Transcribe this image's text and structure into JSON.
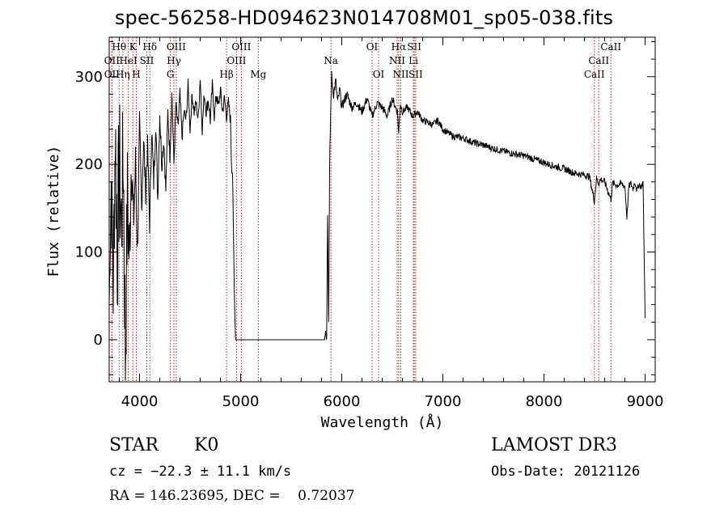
{
  "title": "spec-56258-HD094623N014708M01_sp05-038.fits",
  "info": {
    "object_class": "STAR",
    "subclass": "K0",
    "survey": "LAMOST DR3",
    "cz": "cz = −22.3 ± 11.1 km/s",
    "obs_date": "Obs-Date: 20121126",
    "radec": "RA = 146.23695, DEC =    0.72037"
  },
  "chart_data": {
    "type": "line",
    "xlabel": "Wavelength (Å)",
    "ylabel": "Flux (relative)",
    "xlim": [
      3700,
      9100
    ],
    "ylim": [
      -48,
      345
    ],
    "x_ticks": [
      4000,
      5000,
      6000,
      7000,
      8000,
      9000
    ],
    "y_ticks": [
      0,
      100,
      200,
      300
    ],
    "grid": false,
    "line_color": "#000000",
    "marker_color": "#b22222",
    "spectrum": {
      "x": [
        3700,
        3720,
        3740,
        3760,
        3780,
        3800,
        3820,
        3840,
        3860,
        3880,
        3900,
        3920,
        3940,
        3960,
        3980,
        4000,
        4020,
        4040,
        4060,
        4080,
        4100,
        4120,
        4140,
        4160,
        4180,
        4200,
        4220,
        4240,
        4260,
        4280,
        4300,
        4320,
        4340,
        4360,
        4380,
        4400,
        4420,
        4440,
        4460,
        4480,
        4500,
        4520,
        4540,
        4560,
        4580,
        4600,
        4620,
        4640,
        4660,
        4680,
        4700,
        4720,
        4740,
        4760,
        4780,
        4800,
        4820,
        4840,
        4860,
        4880,
        4900,
        4910,
        4920,
        4930,
        4940,
        4950,
        4960,
        5800,
        5810,
        5820,
        5830,
        5840,
        5850,
        5860,
        5870,
        5880,
        5890,
        5900,
        5920,
        5940,
        5960,
        5980,
        6000,
        6050,
        6100,
        6150,
        6200,
        6250,
        6300,
        6350,
        6400,
        6450,
        6500,
        6550,
        6563,
        6580,
        6600,
        6650,
        6700,
        6750,
        6800,
        6850,
        6900,
        6950,
        7000,
        7100,
        7200,
        7300,
        7400,
        7500,
        7600,
        7700,
        7800,
        7900,
        8000,
        8100,
        8200,
        8300,
        8400,
        8450,
        8498,
        8520,
        8542,
        8560,
        8600,
        8662,
        8680,
        8720,
        8760,
        8800,
        8820,
        8840,
        8860,
        8880,
        8900,
        8920,
        8940,
        8960,
        8980,
        9000
      ],
      "y": [
        40,
        180,
        60,
        240,
        100,
        200,
        130,
        210,
        -20,
        160,
        90,
        220,
        130,
        200,
        100,
        240,
        150,
        230,
        170,
        220,
        130,
        240,
        180,
        250,
        160,
        260,
        200,
        230,
        170,
        260,
        210,
        280,
        200,
        270,
        240,
        280,
        230,
        260,
        250,
        290,
        240,
        280,
        260,
        270,
        250,
        300,
        240,
        280,
        260,
        275,
        250,
        290,
        255,
        280,
        265,
        285,
        260,
        275,
        255,
        270,
        250,
        200,
        190,
        110,
        40,
        0,
        0,
        0,
        0,
        0,
        0,
        10,
        0,
        150,
        20,
        190,
        260,
        300,
        280,
        295,
        270,
        285,
        265,
        280,
        265,
        270,
        260,
        275,
        255,
        270,
        265,
        255,
        275,
        260,
        235,
        270,
        260,
        265,
        255,
        260,
        250,
        248,
        245,
        250,
        240,
        232,
        230,
        225,
        222,
        218,
        215,
        212,
        210,
        206,
        202,
        198,
        195,
        190,
        188,
        186,
        158,
        184,
        178,
        183,
        180,
        160,
        179,
        176,
        178,
        175,
        140,
        175,
        178,
        172,
        180,
        170,
        178,
        174,
        180,
        25
      ],
      "noise": [
        4,
        60,
        70,
        80,
        90,
        90,
        90,
        80,
        90,
        70,
        60,
        50,
        40,
        30,
        25,
        22,
        20,
        18,
        16,
        14,
        12,
        14,
        16,
        14,
        12,
        14,
        12,
        12,
        10,
        10,
        10,
        10,
        10,
        9,
        9,
        9,
        9,
        8,
        8,
        8,
        8,
        8,
        8,
        8,
        8,
        8,
        8,
        8,
        8,
        8,
        8,
        8,
        8,
        8,
        8,
        8,
        8,
        8,
        8,
        8,
        8,
        8,
        8,
        6,
        2,
        0,
        0,
        0,
        0,
        0,
        0,
        0,
        0,
        10,
        10,
        10,
        10,
        8,
        7,
        7,
        7,
        6,
        6,
        6,
        5,
        5,
        5,
        5,
        5,
        5,
        5,
        5,
        5,
        5,
        5,
        5,
        4,
        4,
        4,
        4,
        4,
        4,
        4,
        4,
        4,
        4,
        4,
        4,
        4,
        4,
        4,
        4,
        4,
        4,
        4,
        4,
        4,
        4,
        4,
        4,
        4,
        4,
        4,
        4,
        4,
        4,
        4,
        4,
        4,
        4,
        4,
        4,
        4,
        4,
        4,
        4,
        4,
        4,
        4,
        4
      ]
    },
    "lines": [
      {
        "label": "Hθ",
        "x": 3798,
        "row": 1
      },
      {
        "label": "K",
        "x": 3934,
        "row": 1
      },
      {
        "label": "Hδ",
        "x": 4102,
        "row": 1
      },
      {
        "label": "OIII",
        "x": 4363,
        "row": 1
      },
      {
        "label": "OIII",
        "x": 5007,
        "row": 1
      },
      {
        "label": "OI",
        "x": 6300,
        "row": 1
      },
      {
        "label": "Hα",
        "x": 6563,
        "row": 1
      },
      {
        "label": "SII",
        "x": 6717,
        "row": 1
      },
      {
        "label": "CaII",
        "x": 8662,
        "row": 1
      },
      {
        "label": "OII",
        "x": 3727,
        "row": 2
      },
      {
        "label": "HeI",
        "x": 3889,
        "row": 2
      },
      {
        "label": "SII",
        "x": 4072,
        "row": 2
      },
      {
        "label": "Hγ",
        "x": 4340,
        "row": 2
      },
      {
        "label": "OIII",
        "x": 4959,
        "row": 2
      },
      {
        "label": "Na",
        "x": 5893,
        "row": 2
      },
      {
        "label": "NII",
        "x": 6548,
        "row": 2
      },
      {
        "label": "Li",
        "x": 6708,
        "row": 2
      },
      {
        "label": "CaII",
        "x": 8542,
        "row": 2
      },
      {
        "label": "OII",
        "x": 3727,
        "row": 3
      },
      {
        "label": "Hη",
        "x": 3835,
        "row": 3
      },
      {
        "label": "H",
        "x": 3968,
        "row": 3
      },
      {
        "label": "G",
        "x": 4305,
        "row": 3
      },
      {
        "label": "Hβ",
        "x": 4861,
        "row": 3
      },
      {
        "label": "Mg",
        "x": 5175,
        "row": 3
      },
      {
        "label": "OI",
        "x": 6364,
        "row": 3
      },
      {
        "label": "NII",
        "x": 6584,
        "row": 3
      },
      {
        "label": "SII",
        "x": 6731,
        "row": 3
      },
      {
        "label": "CaII",
        "x": 8498,
        "row": 3
      }
    ]
  }
}
